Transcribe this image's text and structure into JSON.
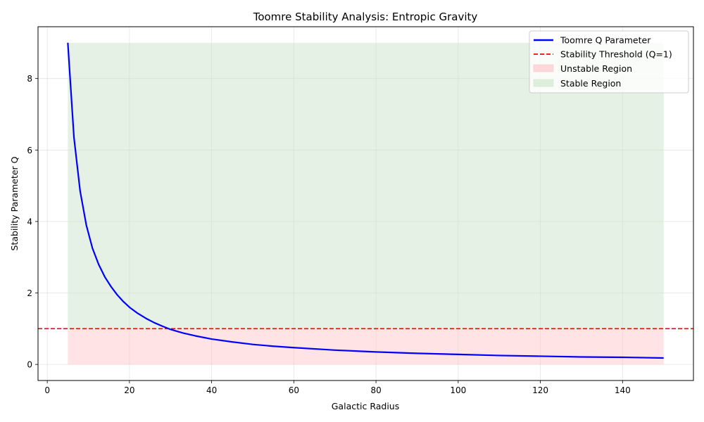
{
  "chart_data": {
    "type": "line",
    "title": "Toomre Stability Analysis: Entropic Gravity",
    "xlabel": "Galactic Radius",
    "ylabel": "Stability Parameter Q",
    "xlim": [
      -2.25,
      157.25
    ],
    "ylim": [
      -0.45,
      9.45
    ],
    "xticks": [
      0,
      20,
      40,
      60,
      80,
      100,
      120,
      140
    ],
    "yticks": [
      0,
      2,
      4,
      6,
      8
    ],
    "grid": true,
    "legend_position": "top-right",
    "series": [
      {
        "name": "Toomre Q Parameter",
        "color": "#0000ff",
        "style": "solid",
        "x": [
          5.0,
          6.5,
          8.0,
          9.5,
          11.0,
          12.5,
          14.0,
          15.5,
          17.0,
          18.5,
          20.0,
          22.0,
          24.0,
          26.0,
          28.0,
          30.0,
          33.0,
          36.0,
          40.0,
          45.0,
          50.0,
          55.0,
          60.0,
          70.0,
          80.0,
          90.0,
          100.0,
          110.0,
          120.0,
          130.0,
          140.0,
          150.0
        ],
        "y": [
          9.0,
          6.35,
          4.85,
          3.9,
          3.25,
          2.8,
          2.45,
          2.18,
          1.95,
          1.76,
          1.6,
          1.43,
          1.29,
          1.17,
          1.07,
          0.98,
          0.88,
          0.8,
          0.71,
          0.63,
          0.56,
          0.51,
          0.47,
          0.4,
          0.35,
          0.31,
          0.28,
          0.25,
          0.23,
          0.21,
          0.2,
          0.18
        ]
      },
      {
        "name": "Stability Threshold (Q=1)",
        "color": "#ff0000",
        "style": "dashed",
        "y_value": 1
      }
    ],
    "regions": [
      {
        "name": "Unstable Region",
        "x_range": [
          5,
          150
        ],
        "y_range": [
          0,
          1
        ],
        "color": "#ffc0c5"
      },
      {
        "name": "Stable Region",
        "x_range": [
          5,
          150
        ],
        "y_range": [
          1,
          9
        ],
        "color": "#c9e4c9"
      }
    ]
  }
}
